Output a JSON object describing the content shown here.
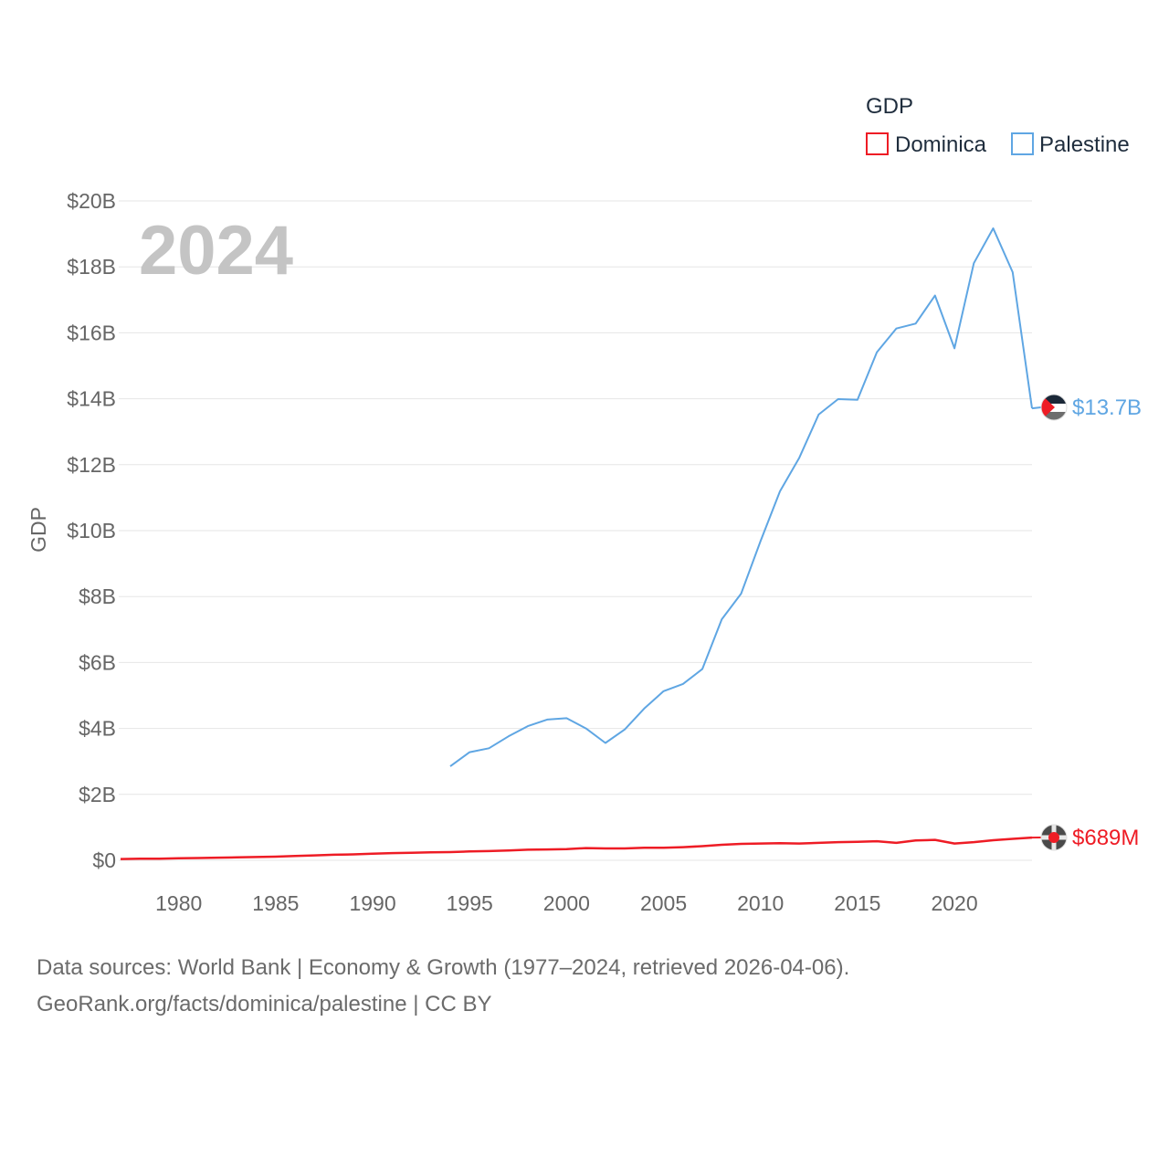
{
  "chart_data": {
    "type": "line",
    "title": "GDP",
    "year_label": "2024",
    "ylabel": "GDP",
    "xlabel": "",
    "xlim": [
      1977,
      2024
    ],
    "ylim": [
      0,
      20
    ],
    "y_unit": "billion USD",
    "grid": true,
    "legend_position": "top-right",
    "x_ticks": [
      1980,
      1985,
      1990,
      1995,
      2000,
      2005,
      2010,
      2015,
      2020
    ],
    "x_tick_labels": [
      "1980",
      "1985",
      "1990",
      "1995",
      "2000",
      "2005",
      "2010",
      "2015",
      "2020"
    ],
    "y_ticks": [
      0,
      2,
      4,
      6,
      8,
      10,
      12,
      14,
      16,
      18,
      20
    ],
    "y_tick_labels": [
      "$0",
      "$2B",
      "$4B",
      "$6B",
      "$8B",
      "$10B",
      "$12B",
      "$14B",
      "$16B",
      "$18B",
      "$20B"
    ],
    "series": [
      {
        "name": "Dominica",
        "color": "#ee1c25",
        "end_label": "$689M",
        "flag_icon": "dominica-flag-icon",
        "x": [
          1977,
          1978,
          1979,
          1980,
          1981,
          1982,
          1983,
          1984,
          1985,
          1986,
          1987,
          1988,
          1989,
          1990,
          1991,
          1992,
          1993,
          1994,
          1995,
          1996,
          1997,
          1998,
          1999,
          2000,
          2001,
          2002,
          2003,
          2004,
          2005,
          2006,
          2007,
          2008,
          2009,
          2010,
          2011,
          2012,
          2013,
          2014,
          2015,
          2016,
          2017,
          2018,
          2019,
          2020,
          2021,
          2022,
          2023,
          2024
        ],
        "values": [
          0.04,
          0.05,
          0.05,
          0.06,
          0.07,
          0.08,
          0.09,
          0.1,
          0.11,
          0.13,
          0.15,
          0.17,
          0.18,
          0.2,
          0.22,
          0.23,
          0.24,
          0.25,
          0.27,
          0.28,
          0.3,
          0.32,
          0.33,
          0.34,
          0.37,
          0.36,
          0.36,
          0.38,
          0.38,
          0.4,
          0.43,
          0.47,
          0.5,
          0.51,
          0.52,
          0.51,
          0.53,
          0.55,
          0.56,
          0.58,
          0.53,
          0.6,
          0.62,
          0.51,
          0.55,
          0.61,
          0.65,
          0.689
        ]
      },
      {
        "name": "Palestine",
        "color": "#5fa6e3",
        "end_label": "$13.7B",
        "flag_icon": "palestine-flag-icon",
        "x": [
          1994,
          1995,
          1996,
          1997,
          1998,
          1999,
          2000,
          2001,
          2002,
          2003,
          2004,
          2005,
          2006,
          2007,
          2008,
          2009,
          2010,
          2011,
          2012,
          2013,
          2014,
          2015,
          2016,
          2017,
          2018,
          2019,
          2020,
          2021,
          2022,
          2023,
          2024
        ],
        "values": [
          2.85,
          3.28,
          3.4,
          3.76,
          4.07,
          4.27,
          4.31,
          4.0,
          3.56,
          3.97,
          4.6,
          5.13,
          5.35,
          5.8,
          7.31,
          8.09,
          9.68,
          11.19,
          12.21,
          13.52,
          13.99,
          13.97,
          15.41,
          16.13,
          16.28,
          17.13,
          15.53,
          18.11,
          19.17,
          17.84,
          13.71
        ]
      }
    ]
  },
  "footer": {
    "line1": "Data sources: World Bank | Economy & Growth (1977–2024, retrieved 2026-04-06).",
    "line2": "GeoRank.org/facts/dominica/palestine | CC BY"
  }
}
